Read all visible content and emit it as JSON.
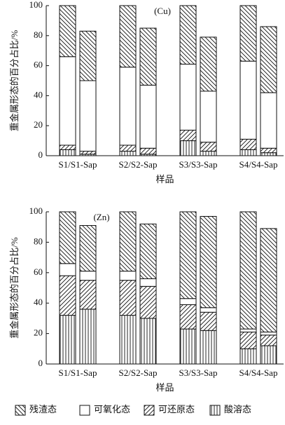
{
  "chart_data": [
    {
      "type": "bar",
      "stacked": true,
      "annotation": "(Cu)",
      "ylabel": "重金属形态的百分占比/%",
      "xlabel": "样品",
      "categories": [
        "S1/S1-Sap",
        null,
        "S2/S2-Sap",
        null,
        "S3/S3-Sap",
        null,
        "S4/S4-Sap",
        null
      ],
      "ylim": [
        0,
        100
      ],
      "yticks": [
        0,
        20,
        40,
        60,
        80,
        100
      ],
      "series": [
        {
          "name": "酸溶态",
          "pattern": "vertical",
          "values": [
            4,
            1,
            3,
            1,
            10,
            3,
            4,
            2
          ]
        },
        {
          "name": "可还原态",
          "pattern": "slash",
          "values": [
            3,
            2,
            4,
            4,
            7,
            6,
            7,
            3
          ]
        },
        {
          "name": "可氧化态",
          "pattern": "none",
          "values": [
            59,
            47,
            52,
            42,
            44,
            34,
            52,
            37
          ]
        },
        {
          "name": "残渣态",
          "pattern": "backslash",
          "values": [
            34,
            33,
            41,
            38,
            39,
            36,
            37,
            44
          ]
        }
      ]
    },
    {
      "type": "bar",
      "stacked": true,
      "annotation": "(Zn)",
      "ylabel": "重金属形态的百分占比/%",
      "xlabel": "样品",
      "categories": [
        "S1/S1-Sap",
        null,
        "S2/S2-Sap",
        null,
        "S3/S3-Sap",
        null,
        "S4/S4-Sap",
        null
      ],
      "ylim": [
        0,
        100
      ],
      "yticks": [
        0,
        20,
        40,
        60,
        80,
        100
      ],
      "series": [
        {
          "pattern": "vertical",
          "values": [
            32,
            36,
            32,
            30,
            23,
            22,
            10,
            12
          ]
        },
        {
          "pattern": "slash",
          "values": [
            26,
            19,
            23,
            21,
            16,
            12,
            11,
            7
          ]
        },
        {
          "pattern": "none",
          "values": [
            8,
            6,
            6,
            5,
            4,
            3,
            2,
            2
          ]
        },
        {
          "pattern": "backslash",
          "values": [
            34,
            30,
            39,
            36,
            57,
            60,
            77,
            68
          ]
        }
      ]
    }
  ]
}
